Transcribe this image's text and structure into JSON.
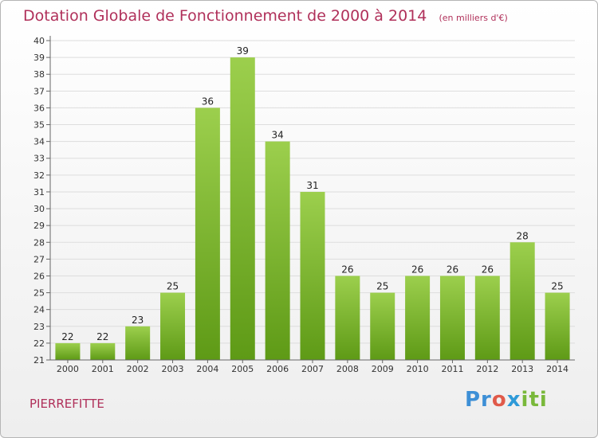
{
  "chart_data": {
    "type": "bar",
    "title": "Dotation Globale de Fonctionnement de 2000 à 2014",
    "unit_note": "(en milliers d'€)",
    "categories": [
      "2000",
      "2001",
      "2002",
      "2003",
      "2004",
      "2005",
      "2006",
      "2007",
      "2008",
      "2009",
      "2010",
      "2011",
      "2012",
      "2013",
      "2014"
    ],
    "values": [
      22,
      22,
      23,
      25,
      36,
      39,
      34,
      31,
      26,
      25,
      26,
      26,
      26,
      28,
      25
    ],
    "ylim": [
      21,
      40
    ],
    "yticks": [
      21,
      22,
      23,
      24,
      25,
      26,
      27,
      28,
      29,
      30,
      31,
      32,
      33,
      34,
      35,
      36,
      37,
      38,
      39,
      40
    ],
    "xlabel": "",
    "ylabel": "",
    "grid": true,
    "bar_color_top": "#9ccf4d",
    "bar_color_bottom": "#5e9a16"
  },
  "location_label": "PIERREFITTE",
  "brand": {
    "part1": "Pr",
    "part2": "o",
    "part3": "x",
    "part4": "iti"
  },
  "colors": {
    "title": "#b0305a",
    "axis": "#666666",
    "grid": "#dddddd"
  }
}
